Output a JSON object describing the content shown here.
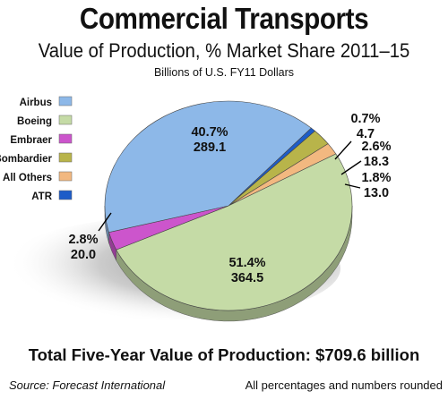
{
  "header": {
    "title": "Commercial Transports",
    "subtitle": "Value of Production, % Market Share 2011–15",
    "units": "Billions of U.S. FY11 Dollars"
  },
  "footer": {
    "total": "Total Five-Year Value of Production: $709.6 billion",
    "source": "Source:  Forecast International",
    "note": "All percentages and numbers rounded"
  },
  "chart_data": {
    "type": "pie",
    "title": "Commercial Transports",
    "subtitle": "Value of Production, % Market Share 2011–15",
    "unit": "Billions of U.S. FY11 Dollars",
    "legend_position": "left",
    "slices": [
      {
        "name": "Airbus",
        "percent": "40.7%",
        "value": 289.1,
        "color": "#8db8e8"
      },
      {
        "name": "Boeing",
        "percent": "51.4%",
        "value": 364.5,
        "color": "#c5dba6"
      },
      {
        "name": "Embraer",
        "percent": "2.8%",
        "value": 20.0,
        "color": "#cc55cc"
      },
      {
        "name": "Bombardier",
        "percent": "2.6%",
        "value": 18.3,
        "color": "#b8b44a"
      },
      {
        "name": "All Others",
        "percent": "1.8%",
        "value": 13.0,
        "color": "#f2b880"
      },
      {
        "name": "ATR",
        "percent": "0.7%",
        "value": 4.7,
        "color": "#1d5cc8"
      }
    ]
  }
}
